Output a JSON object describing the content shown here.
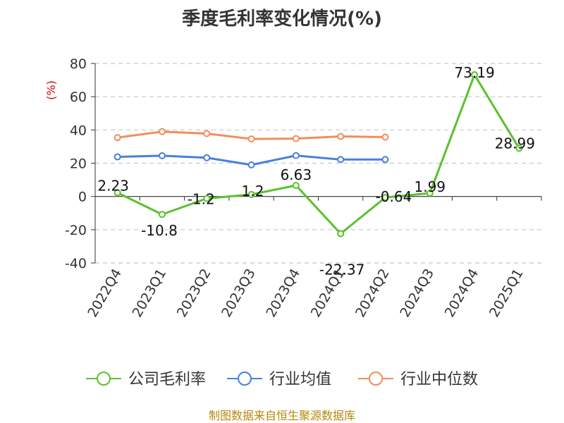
{
  "title": "季度毛利率变化情况(%)",
  "source": "制图数据来自恒生聚源数据库",
  "chart_data": {
    "type": "line",
    "title": "季度毛利率变化情况(%)",
    "unit_label": "(%)",
    "categories": [
      "2022Q4",
      "2023Q1",
      "2023Q2",
      "2023Q3",
      "2023Q4",
      "2024Q1",
      "2024Q2",
      "2024Q3",
      "2024Q4",
      "2025Q1"
    ],
    "ylim": [
      -40,
      80
    ],
    "yticks": [
      "80",
      "60",
      "40",
      "20",
      "0",
      "-20",
      "-40"
    ],
    "grid": true,
    "legend_position": "bottom",
    "series": [
      {
        "name": "公司毛利率",
        "color": "#5bc12e",
        "values": [
          2.23,
          -10.8,
          -1.2,
          1.2,
          6.63,
          -22.37,
          -0.64,
          1.99,
          73.19,
          28.99
        ],
        "labels": [
          "2.23",
          "-10.8",
          "-1.2",
          "1.2",
          "6.63",
          "-22.37",
          "-0.64",
          "1.99",
          "73.19",
          "28.99"
        ]
      },
      {
        "name": "行业均值",
        "color": "#4a7fdc",
        "values": [
          23.8,
          24.5,
          23.3,
          19.0,
          24.6,
          22.2,
          22.2,
          null,
          null,
          null
        ]
      },
      {
        "name": "行业中位数",
        "color": "#f28c5c",
        "values": [
          35.4,
          39.0,
          37.8,
          34.6,
          34.8,
          36.1,
          35.7,
          null,
          null,
          null
        ]
      }
    ]
  }
}
